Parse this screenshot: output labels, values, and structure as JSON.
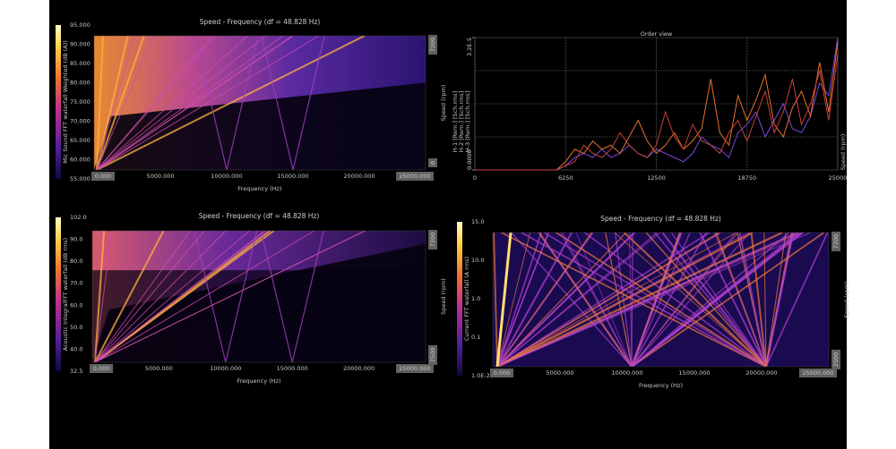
{
  "panels": [
    {
      "title": "Speed - Frequency (df = 48.828 Hz)",
      "colorbar_label": "Mic Sound FFT waterfall Weighted (dB (A))",
      "colorbar_ticks": [
        "95.000",
        "90.000",
        "85.000",
        "80.000",
        "75.000",
        "70.000",
        "65.000",
        "60.000",
        "55.000"
      ],
      "x_label": "Frequency (Hz)",
      "x_ticks": [
        "0.000",
        "5000.000",
        "10000.000",
        "15000.000",
        "20000.000",
        "25000.000"
      ],
      "y_label": "Speed (rpm)",
      "y_ticks": [
        "7200",
        "0"
      ]
    },
    {
      "title": "Speed - Frequency (df = 48.828 Hz)",
      "colorbar_label": "Acoustic IntegralFFT waterfall (dB rms)",
      "colorbar_ticks": [
        "102.0",
        "90.0",
        "80.0",
        "70.0",
        "60.0",
        "50.0",
        "40.0",
        "32.5"
      ],
      "x_label": "Frequency (Hz)",
      "x_ticks": [
        "0.000",
        "5000.000",
        "10000.000",
        "15000.000",
        "20000.000",
        "25000.000"
      ],
      "y_label": "Speed (rpm)",
      "y_ticks": [
        "7200",
        "2500"
      ]
    },
    {
      "title": "Speed - Frequency (df = 48.828 Hz)",
      "colorbar_label": "Current FFT waterfall (A rms)",
      "colorbar_ticks": [
        "15.0",
        "10.0",
        "1.0",
        "0.1",
        "1.0E-2"
      ],
      "x_label": "Frequency (Hz)",
      "x_ticks": [
        "0.000",
        "5000.000",
        "10000.000",
        "15000.000",
        "20000.000",
        "25000.000"
      ],
      "y_label": "Speed (rpm)",
      "y_ticks": [
        "7200",
        "2500"
      ]
    }
  ],
  "chart_data": {
    "type": "line",
    "title": "Order view",
    "y_label": "Speed (rpm)",
    "x": [
      0,
      625,
      1250,
      1875,
      2500,
      3125,
      3750,
      4375,
      5000,
      5625,
      6250,
      6875,
      7500,
      8125,
      8750,
      9375,
      10000,
      10625,
      11250,
      11875,
      12500,
      13125,
      13750,
      14375,
      15000,
      15625,
      16250,
      16875,
      17500,
      18125,
      18750,
      19375,
      20000,
      20625,
      21250,
      21875,
      22500,
      23125,
      23750,
      24375,
      25000
    ],
    "xlim": [
      0,
      25000
    ],
    "xticks": [
      0,
      6250,
      12500,
      18750,
      25000
    ],
    "ylim": [
      0,
      3.2e-05
    ],
    "yticks": [
      {
        "value": 0,
        "label": "0.0000"
      },
      {
        "value": 3.2e-05,
        "label": "3.2E-5"
      }
    ],
    "series": [
      {
        "name": "H-1 [Rem.] [Sch.rms]",
        "color": "#7b46e0",
        "values": [
          0,
          0,
          0,
          0,
          0,
          0,
          0,
          0,
          0,
          0,
          1e-06,
          3e-06,
          4e-06,
          3e-06,
          5e-06,
          3e-06,
          4e-06,
          6e-06,
          4e-06,
          3e-06,
          5e-06,
          4e-06,
          3e-06,
          2e-06,
          4e-06,
          8e-06,
          6e-06,
          5e-06,
          3e-06,
          9e-06,
          1.1e-05,
          1.4e-05,
          8e-06,
          1.2e-05,
          1.6e-05,
          1e-05,
          9e-06,
          1.3e-05,
          2.1e-05,
          1.8e-05,
          3.2e-05
        ]
      },
      {
        "name": "H-2 [Rem.] [Sch.rms]",
        "color": "#e8702c",
        "values": [
          0,
          0,
          0,
          0,
          0,
          0,
          0,
          0,
          0,
          0,
          2e-06,
          5e-06,
          4e-06,
          7e-06,
          5e-06,
          6e-06,
          4e-06,
          8e-06,
          1.2e-05,
          7e-06,
          4e-06,
          6e-06,
          9e-06,
          5e-06,
          7e-06,
          1e-05,
          2.2e-05,
          9e-06,
          6e-06,
          1.8e-05,
          1.2e-05,
          1.7e-05,
          2.3e-05,
          1.1e-05,
          8e-06,
          1.5e-05,
          1.9e-05,
          1.3e-05,
          2.6e-05,
          1.4e-05,
          3.1e-05
        ]
      },
      {
        "name": "H-3 [Rem.] [Sch.rms]",
        "color": "#c8403c",
        "values": [
          0,
          0,
          0,
          0,
          0,
          0,
          0,
          0,
          0,
          0,
          1e-06,
          2e-06,
          6e-06,
          4e-06,
          3e-06,
          5e-06,
          9e-06,
          6e-06,
          4e-06,
          3e-06,
          6e-06,
          1.4e-05,
          8e-06,
          5e-06,
          1.1e-05,
          7e-06,
          6e-06,
          4e-06,
          9e-06,
          1.2e-05,
          7e-06,
          1.3e-05,
          1.9e-05,
          9e-06,
          1.4e-05,
          2.2e-05,
          1.1e-05,
          1.6e-05,
          2.4e-05,
          1.2e-05,
          2.8e-05
        ]
      }
    ]
  }
}
